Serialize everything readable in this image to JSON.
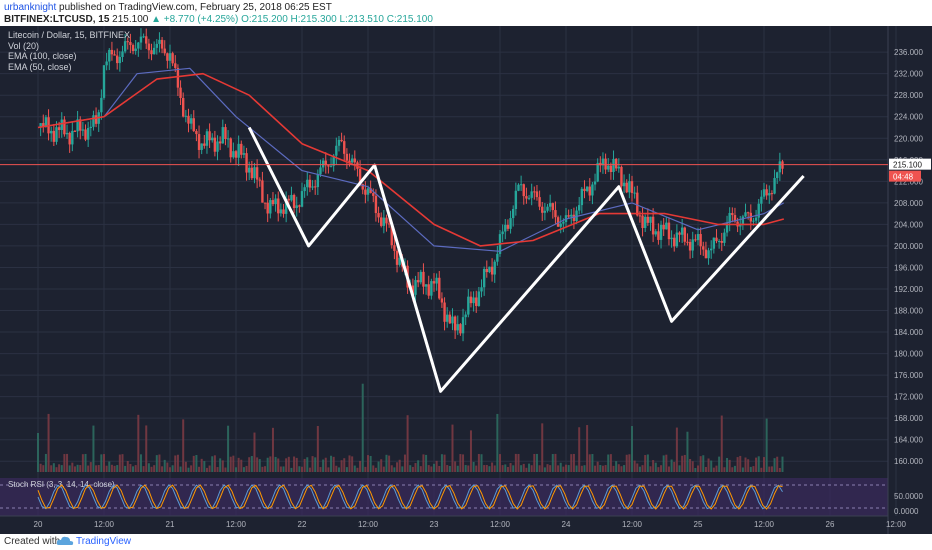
{
  "header": {
    "author": "urbanknight",
    "published_text": " published on TradingView.com, February 25, 2018 06:25 EST",
    "symbol": "BITFINEX:LTCUSD, 15",
    "last_price": "215.100",
    "change": "▲ +8.770 (+4.25%)",
    "ohlc": "O:215.200 H:215.300 L:213.510 C:215.100"
  },
  "legend": {
    "title": "Litecoin / Dollar, 15, BITFINEX",
    "vol": "Vol (20)",
    "ema100": "EMA (100, close)",
    "ema50": "EMA (50, close)"
  },
  "rsi_label": "Stoch RSI (3, 3, 14, 14, close)",
  "price_tag": {
    "price": "215.100",
    "countdown": "04:48"
  },
  "footer": {
    "created": "Created with",
    "brand": "TradingView"
  },
  "colors": {
    "background": "#1d2230",
    "grid": "#2b3142",
    "up": "#26a69a",
    "down": "#ef5350",
    "ema100": "#e53935",
    "ema50": "#5c6bc0",
    "pattern": "#ffffff"
  },
  "chart_data": {
    "type": "candlestick",
    "title": "Litecoin / Dollar, 15, BITFINEX",
    "ylim": [
      158,
      239
    ],
    "y_ticks": [
      "236.000",
      "232.000",
      "228.000",
      "224.000",
      "220.000",
      "216.000",
      "212.000",
      "208.000",
      "204.000",
      "200.000",
      "196.000",
      "192.000",
      "188.000",
      "184.000",
      "180.000",
      "176.000",
      "172.000",
      "168.000",
      "164.000",
      "160.000"
    ],
    "x_ticks": [
      "20",
      "12:00",
      "21",
      "12:00",
      "22",
      "12:00",
      "23",
      "12:00",
      "24",
      "12:00",
      "25",
      "12:00",
      "26",
      "12:00"
    ],
    "rsi_ticks": [
      "50.0000",
      "0.0000"
    ],
    "price_path": [
      {
        "x": 0.0,
        "y": 222.0
      },
      {
        "x": 0.5,
        "y": 221.0
      },
      {
        "x": 0.9,
        "y": 222.5
      },
      {
        "x": 1.0,
        "y": 234.0
      },
      {
        "x": 1.5,
        "y": 238.0
      },
      {
        "x": 2.0,
        "y": 236.0
      },
      {
        "x": 2.1,
        "y": 230.0
      },
      {
        "x": 2.3,
        "y": 222.0
      },
      {
        "x": 2.5,
        "y": 219.0
      },
      {
        "x": 2.8,
        "y": 220.0
      },
      {
        "x": 3.2,
        "y": 215.0
      },
      {
        "x": 3.5,
        "y": 207.0
      },
      {
        "x": 3.9,
        "y": 208.0
      },
      {
        "x": 4.3,
        "y": 214.0
      },
      {
        "x": 4.6,
        "y": 219.0
      },
      {
        "x": 4.9,
        "y": 212.0
      },
      {
        "x": 5.3,
        "y": 203.0
      },
      {
        "x": 5.6,
        "y": 193.0
      },
      {
        "x": 6.0,
        "y": 193.0
      },
      {
        "x": 6.3,
        "y": 184.0
      },
      {
        "x": 6.6,
        "y": 190.0
      },
      {
        "x": 6.9,
        "y": 197.0
      },
      {
        "x": 7.3,
        "y": 211.0
      },
      {
        "x": 7.6,
        "y": 208.0
      },
      {
        "x": 8.0,
        "y": 204.0
      },
      {
        "x": 8.3,
        "y": 210.0
      },
      {
        "x": 8.6,
        "y": 216.0
      },
      {
        "x": 8.9,
        "y": 212.0
      },
      {
        "x": 9.2,
        "y": 204.0
      },
      {
        "x": 9.6,
        "y": 202.0
      },
      {
        "x": 9.9,
        "y": 201.0
      },
      {
        "x": 10.2,
        "y": 199.0
      },
      {
        "x": 10.5,
        "y": 205.0
      },
      {
        "x": 10.8,
        "y": 205.0
      },
      {
        "x": 11.1,
        "y": 211.0
      },
      {
        "x": 11.3,
        "y": 215.1
      }
    ],
    "ema50": [
      {
        "x": 0.0,
        "y": 222.0
      },
      {
        "x": 1.0,
        "y": 224.0
      },
      {
        "x": 1.5,
        "y": 232.0
      },
      {
        "x": 2.3,
        "y": 233.0
      },
      {
        "x": 3.0,
        "y": 224.0
      },
      {
        "x": 4.0,
        "y": 214.0
      },
      {
        "x": 5.0,
        "y": 211.0
      },
      {
        "x": 6.0,
        "y": 200.0
      },
      {
        "x": 7.0,
        "y": 199.0
      },
      {
        "x": 8.0,
        "y": 205.0
      },
      {
        "x": 9.0,
        "y": 208.0
      },
      {
        "x": 10.0,
        "y": 203.0
      },
      {
        "x": 11.0,
        "y": 206.0
      },
      {
        "x": 11.3,
        "y": 208.0
      }
    ],
    "ema100": [
      {
        "x": 0.0,
        "y": 222.0
      },
      {
        "x": 1.0,
        "y": 224.0
      },
      {
        "x": 1.8,
        "y": 231.0
      },
      {
        "x": 2.5,
        "y": 232.0
      },
      {
        "x": 3.2,
        "y": 228.0
      },
      {
        "x": 4.0,
        "y": 219.0
      },
      {
        "x": 5.0,
        "y": 214.0
      },
      {
        "x": 6.0,
        "y": 204.0
      },
      {
        "x": 6.7,
        "y": 200.0
      },
      {
        "x": 7.5,
        "y": 201.0
      },
      {
        "x": 8.5,
        "y": 206.0
      },
      {
        "x": 9.5,
        "y": 206.0
      },
      {
        "x": 10.3,
        "y": 204.0
      },
      {
        "x": 11.0,
        "y": 204.0
      },
      {
        "x": 11.3,
        "y": 205.0
      }
    ],
    "pattern_lines": [
      [
        {
          "x": 3.2,
          "y": 222.0
        },
        {
          "x": 4.1,
          "y": 200.0
        },
        {
          "x": 5.1,
          "y": 215.0
        },
        {
          "x": 6.1,
          "y": 173.0
        },
        {
          "x": 8.8,
          "y": 211.0
        },
        {
          "x": 9.6,
          "y": 186.0
        },
        {
          "x": 11.6,
          "y": 213.0
        }
      ]
    ],
    "last_price": 215.1
  }
}
